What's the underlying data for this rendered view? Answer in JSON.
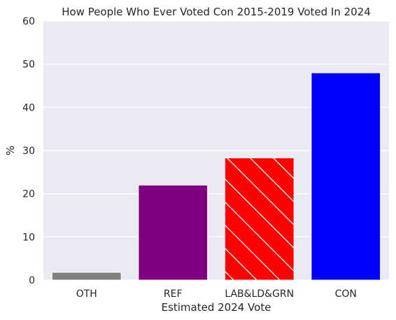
{
  "chart_data": {
    "type": "bar",
    "title": "How People Who Ever Voted Con 2015-2019 Voted In 2024",
    "xlabel": "Estimated 2024 Vote",
    "ylabel": "%",
    "ylim": [
      0,
      60
    ],
    "yticks": [
      0,
      10,
      20,
      30,
      40,
      50,
      60
    ],
    "grid": true,
    "categories": [
      "OTH",
      "REF",
      "LAB&LD&GRN",
      "CON"
    ],
    "values": [
      1.8,
      22.0,
      28.3,
      48.0
    ],
    "colors": [
      "#808080",
      "#800080",
      "#ff0000",
      "#0000ff"
    ],
    "hatched": [
      false,
      false,
      true,
      false
    ]
  }
}
